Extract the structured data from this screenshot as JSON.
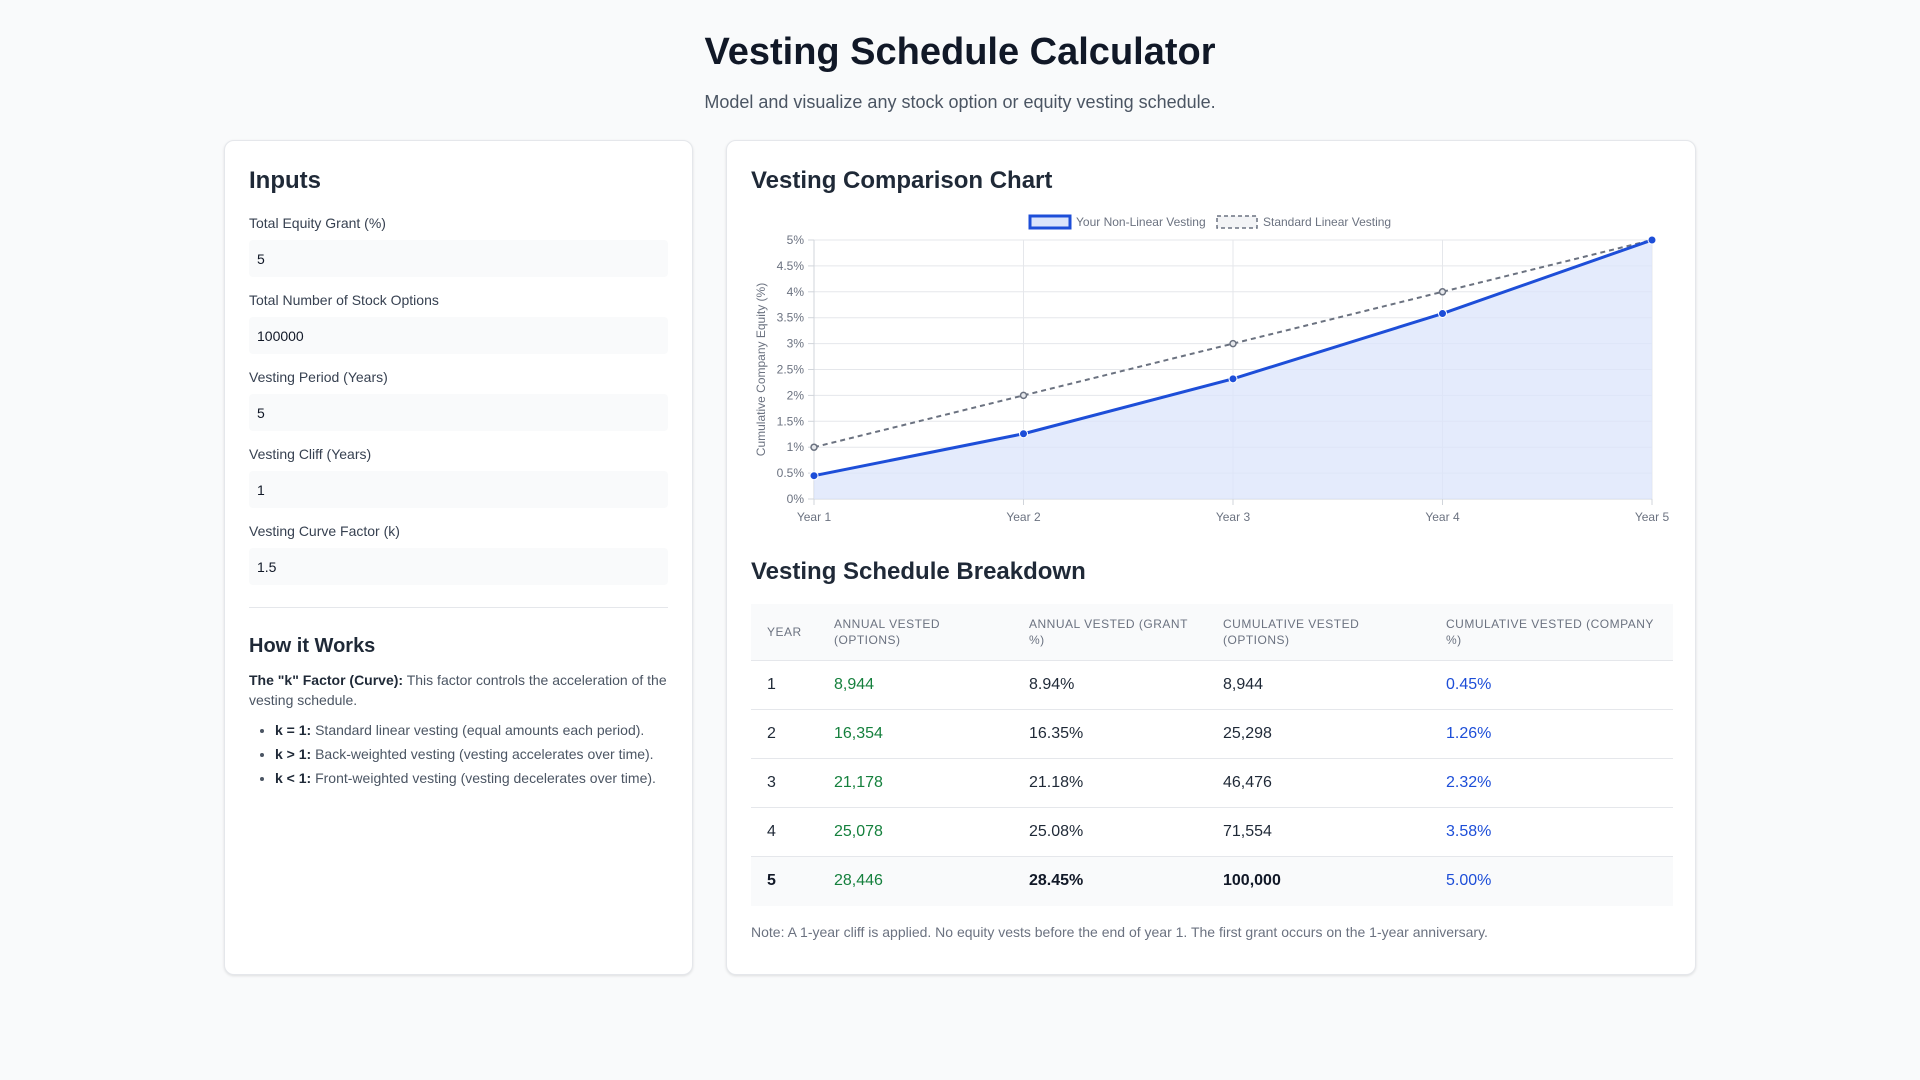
{
  "header": {
    "title": "Vesting Schedule Calculator",
    "subtitle": "Model and visualize any stock option or equity vesting schedule."
  },
  "inputs": {
    "title": "Inputs",
    "fields": [
      {
        "label": "Total Equity Grant (%)",
        "value": "5"
      },
      {
        "label": "Total Number of Stock Options",
        "value": "100000"
      },
      {
        "label": "Vesting Period (Years)",
        "value": "5"
      },
      {
        "label": "Vesting Cliff (Years)",
        "value": "1"
      },
      {
        "label": "Vesting Curve Factor (k)",
        "value": "1.5"
      }
    ],
    "how": {
      "title": "How it Works",
      "intro_bold": "The \"k\" Factor (Curve):",
      "intro_text": " This factor controls the acceleration of the vesting schedule.",
      "items": [
        {
          "bold": "k = 1:",
          "text": " Standard linear vesting (equal amounts each period)."
        },
        {
          "bold": "k > 1:",
          "text": " Back-weighted vesting (vesting accelerates over time)."
        },
        {
          "bold": "k < 1:",
          "text": " Front-weighted vesting (vesting decelerates over time)."
        }
      ]
    }
  },
  "chart_section": {
    "title": "Vesting Comparison Chart"
  },
  "chart_data": {
    "type": "line",
    "x": [
      "Year 1",
      "Year 2",
      "Year 3",
      "Year 4",
      "Year 5"
    ],
    "ylabel": "Cumulative Company Equity (%)",
    "y_ticks": [
      "0%",
      "0.5%",
      "1%",
      "1.5%",
      "2%",
      "2.5%",
      "3%",
      "3.5%",
      "4%",
      "4.5%",
      "5%"
    ],
    "ylim": [
      0,
      5
    ],
    "grid": true,
    "legend_position": "top-center",
    "series": [
      {
        "name": "Your Non-Linear Vesting",
        "values": [
          0.45,
          1.26,
          2.32,
          3.58,
          5.0
        ],
        "color": "#1d4ed8",
        "fill": "#dbe4fb",
        "dashed": false
      },
      {
        "name": "Standard Linear Vesting",
        "values": [
          1,
          2,
          3,
          4,
          5
        ],
        "color": "#6b7280",
        "dashed": true
      }
    ]
  },
  "table": {
    "title": "Vesting Schedule Breakdown",
    "headers": [
      "Year",
      "Annual Vested (Options)",
      "Annual Vested (Grant %)",
      "Cumulative Vested (Options)",
      "Cumulative Vested (Company %)"
    ],
    "rows": [
      [
        "1",
        "8,944",
        "8.94%",
        "8,944",
        "0.45%"
      ],
      [
        "2",
        "16,354",
        "16.35%",
        "25,298",
        "1.26%"
      ],
      [
        "3",
        "21,178",
        "21.18%",
        "46,476",
        "2.32%"
      ],
      [
        "4",
        "25,078",
        "25.08%",
        "71,554",
        "3.58%"
      ],
      [
        "5",
        "28,446",
        "28.45%",
        "100,000",
        "5.00%"
      ]
    ],
    "note": "Note: A 1-year cliff is applied. No equity vests before the end of year 1. The first grant occurs on the 1-year anniversary."
  }
}
